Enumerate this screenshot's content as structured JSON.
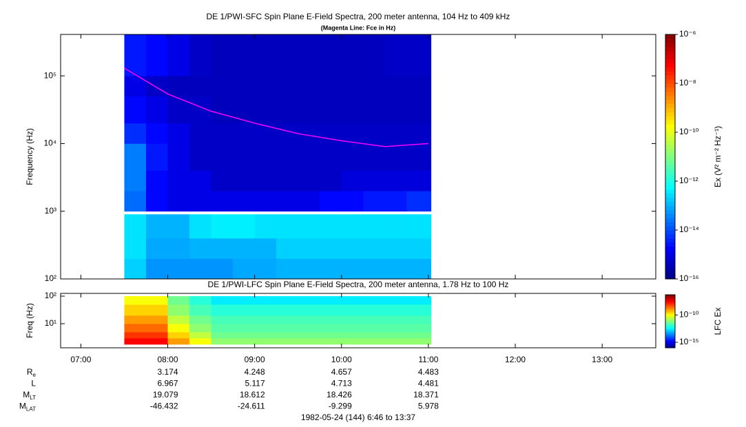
{
  "chart_data": [
    {
      "type": "spectrogram",
      "title": "DE 1/PWI-SFC  Spin Plane E-Field Spectra, 200 meter antenna, 104 Hz to 409 kHz",
      "subtitle": "(Magenta Line: Fce in Hz)",
      "y_label": "Frequency (Hz)",
      "colorbar_label": "Ex (V² m⁻² Hz⁻¹)",
      "colormap": "jet",
      "ylog": true,
      "zlog": true,
      "xlim": [
        6.767,
        13.617
      ],
      "ylim": [
        100,
        409000
      ],
      "yticks": [
        {
          "value": 100,
          "label": "10²"
        },
        {
          "value": 1000,
          "label": "10³"
        },
        {
          "value": 10000,
          "label": "10⁴"
        },
        {
          "value": 100000,
          "label": "10⁵"
        }
      ],
      "clim": [
        1e-16,
        1e-06
      ],
      "cticks": [
        {
          "value": 1e-16,
          "label": "10⁻¹⁶"
        },
        {
          "value": 1e-14,
          "label": "10⁻¹⁴"
        },
        {
          "value": 1e-12,
          "label": "10⁻¹²"
        },
        {
          "value": 1e-10,
          "label": "10⁻¹⁰"
        },
        {
          "value": 1e-08,
          "label": "10⁻⁸"
        },
        {
          "value": 1e-06,
          "label": "10⁻⁶"
        }
      ],
      "xbins": [
        7.5,
        7.75,
        8.0,
        8.25,
        8.5,
        8.75,
        9.0,
        9.25,
        9.5,
        9.75,
        10.0,
        10.25,
        10.5,
        10.75,
        11.03
      ],
      "ybins": [
        100,
        200,
        400,
        900,
        1000,
        2000,
        4000,
        10000,
        20000,
        50000,
        100000,
        409000
      ],
      "z": [
        [
          2e-13,
          5e-14,
          5e-14,
          5e-14,
          5e-14,
          8e-14,
          8e-14,
          1e-13,
          1e-13,
          1e-13,
          1e-13,
          1e-13,
          1e-13,
          1e-13
        ],
        [
          3e-13,
          8e-14,
          8e-14,
          1e-13,
          1e-13,
          1e-13,
          1e-13,
          2e-13,
          2e-13,
          2e-13,
          2e-13,
          2e-13,
          2e-13,
          2e-13
        ],
        [
          3e-13,
          1e-13,
          1e-13,
          3e-13,
          4e-13,
          4e-13,
          3e-13,
          3e-13,
          3e-13,
          3e-13,
          3e-13,
          3e-13,
          3e-13,
          3e-13
        ],
        [
          null,
          null,
          null,
          null,
          null,
          null,
          null,
          null,
          null,
          null,
          null,
          null,
          null,
          null
        ],
        [
          2e-14,
          2e-15,
          1e-15,
          1e-15,
          1e-15,
          1e-15,
          1e-15,
          1e-15,
          1e-15,
          2e-15,
          2e-15,
          3e-15,
          3e-15,
          5e-15
        ],
        [
          3e-14,
          2e-15,
          1e-15,
          1e-15,
          5e-16,
          5e-16,
          5e-16,
          5e-16,
          5e-16,
          5e-16,
          8e-16,
          8e-16,
          8e-16,
          8e-16
        ],
        [
          3e-14,
          3e-15,
          1e-15,
          5e-16,
          5e-16,
          5e-16,
          5e-16,
          5e-16,
          5e-16,
          5e-16,
          5e-16,
          5e-16,
          5e-16,
          5e-16
        ],
        [
          5e-15,
          2e-15,
          1e-15,
          5e-16,
          5e-16,
          5e-16,
          5e-16,
          5e-16,
          5e-16,
          5e-16,
          5e-16,
          5e-16,
          5e-16,
          5e-16
        ],
        [
          2e-15,
          1e-15,
          5e-16,
          5e-16,
          4e-16,
          4e-16,
          4e-16,
          4e-16,
          4e-16,
          4e-16,
          4e-16,
          4e-16,
          4e-16,
          4e-16
        ],
        [
          1e-15,
          5e-16,
          4e-16,
          4e-16,
          4e-16,
          4e-16,
          4e-16,
          4e-16,
          4e-16,
          4e-16,
          4e-16,
          4e-16,
          4e-16,
          4e-16
        ],
        [
          3e-15,
          2e-15,
          1e-15,
          5e-16,
          4e-16,
          4e-16,
          4e-16,
          4e-16,
          4e-16,
          4e-16,
          4e-16,
          4e-16,
          5e-16,
          5e-16
        ]
      ],
      "line": {
        "color": "#ff00ff",
        "x": [
          7.5,
          8.0,
          8.5,
          9.0,
          9.5,
          10.0,
          10.5,
          11.0
        ],
        "values": [
          130000,
          54000,
          30000,
          20000,
          14000,
          11000,
          9000,
          10000
        ]
      }
    },
    {
      "type": "spectrogram",
      "title": "DE 1/PWI-LFC  Spin Plane E-Field Spectra, 200 meter antenna, 1.78 Hz to 100 Hz",
      "y_label": "Freq (Hz)",
      "colorbar_label": "LFC Ex",
      "colormap": "jet",
      "ylog": true,
      "zlog": true,
      "xlim": [
        6.767,
        13.617
      ],
      "xticks": [
        {
          "value": 7,
          "label": "07:00"
        },
        {
          "value": 8,
          "label": "08:00"
        },
        {
          "value": 9,
          "label": "09:00"
        },
        {
          "value": 10,
          "label": "10:00"
        },
        {
          "value": 11,
          "label": "11:00"
        },
        {
          "value": 12,
          "label": "12:00"
        },
        {
          "value": 13,
          "label": "13:00"
        }
      ],
      "ylim": [
        1.33,
        126
      ],
      "yticks": [
        {
          "value": 10,
          "label": "10¹"
        },
        {
          "value": 100,
          "label": "10²"
        }
      ],
      "clim": [
        1e-16,
        5e-07
      ],
      "cticks": [
        {
          "value": 1e-15,
          "label": "10⁻¹⁵"
        },
        {
          "value": 1e-10,
          "label": "10⁻¹⁰"
        }
      ],
      "xbins": [
        7.5,
        7.75,
        8.0,
        8.25,
        8.5,
        8.75,
        9.0,
        9.25,
        9.5,
        9.75,
        10.0,
        10.25,
        10.5,
        10.75,
        11.03
      ],
      "ybins": [
        1.78,
        3,
        5,
        10,
        20,
        50,
        100
      ],
      "z": [
        [
          3e-08,
          3e-08,
          1e-09,
          1e-10,
          1e-11,
          1e-11,
          1e-11,
          1e-11,
          1e-11,
          1e-11,
          1e-11,
          1e-11,
          1e-11,
          1e-11
        ],
        [
          1e-08,
          1e-08,
          3e-10,
          3e-11,
          5e-12,
          5e-12,
          5e-12,
          5e-12,
          5e-12,
          5e-12,
          5e-12,
          5e-12,
          5e-12,
          5e-12
        ],
        [
          3e-09,
          3e-09,
          1e-10,
          1e-11,
          3e-12,
          3e-12,
          3e-12,
          3e-12,
          3e-12,
          3e-12,
          3e-12,
          3e-12,
          3e-12,
          3e-12
        ],
        [
          1e-09,
          1e-09,
          3e-11,
          5e-12,
          2e-12,
          2e-12,
          2e-12,
          2e-12,
          2e-12,
          2e-12,
          2e-12,
          2e-12,
          2e-12,
          2e-12
        ],
        [
          3e-10,
          3e-10,
          1e-11,
          2e-12,
          1e-12,
          1e-12,
          1e-12,
          1e-12,
          1e-12,
          1e-12,
          1e-12,
          1e-12,
          1e-12,
          1e-12
        ],
        [
          1e-10,
          1e-10,
          5e-12,
          1e-12,
          3e-13,
          3e-13,
          3e-13,
          3e-13,
          3e-13,
          3e-13,
          3e-13,
          3e-13,
          3e-13,
          3e-13
        ]
      ]
    }
  ],
  "ephemeris": [
    {
      "name": "R",
      "sub": "e",
      "values": [
        3.174,
        4.248,
        4.657,
        4.483
      ]
    },
    {
      "name": "L",
      "sub": "",
      "values": [
        6.967,
        5.117,
        4.713,
        4.481
      ]
    },
    {
      "name": "M",
      "sub": "LT",
      "values": [
        19.079,
        18.612,
        18.426,
        18.371
      ]
    },
    {
      "name": "M",
      "sub": "LAT",
      "values": [
        -46.432,
        -24.611,
        -9.299,
        5.978
      ]
    }
  ],
  "footer": "1982-05-24 (144) 6:46 to 13:37"
}
